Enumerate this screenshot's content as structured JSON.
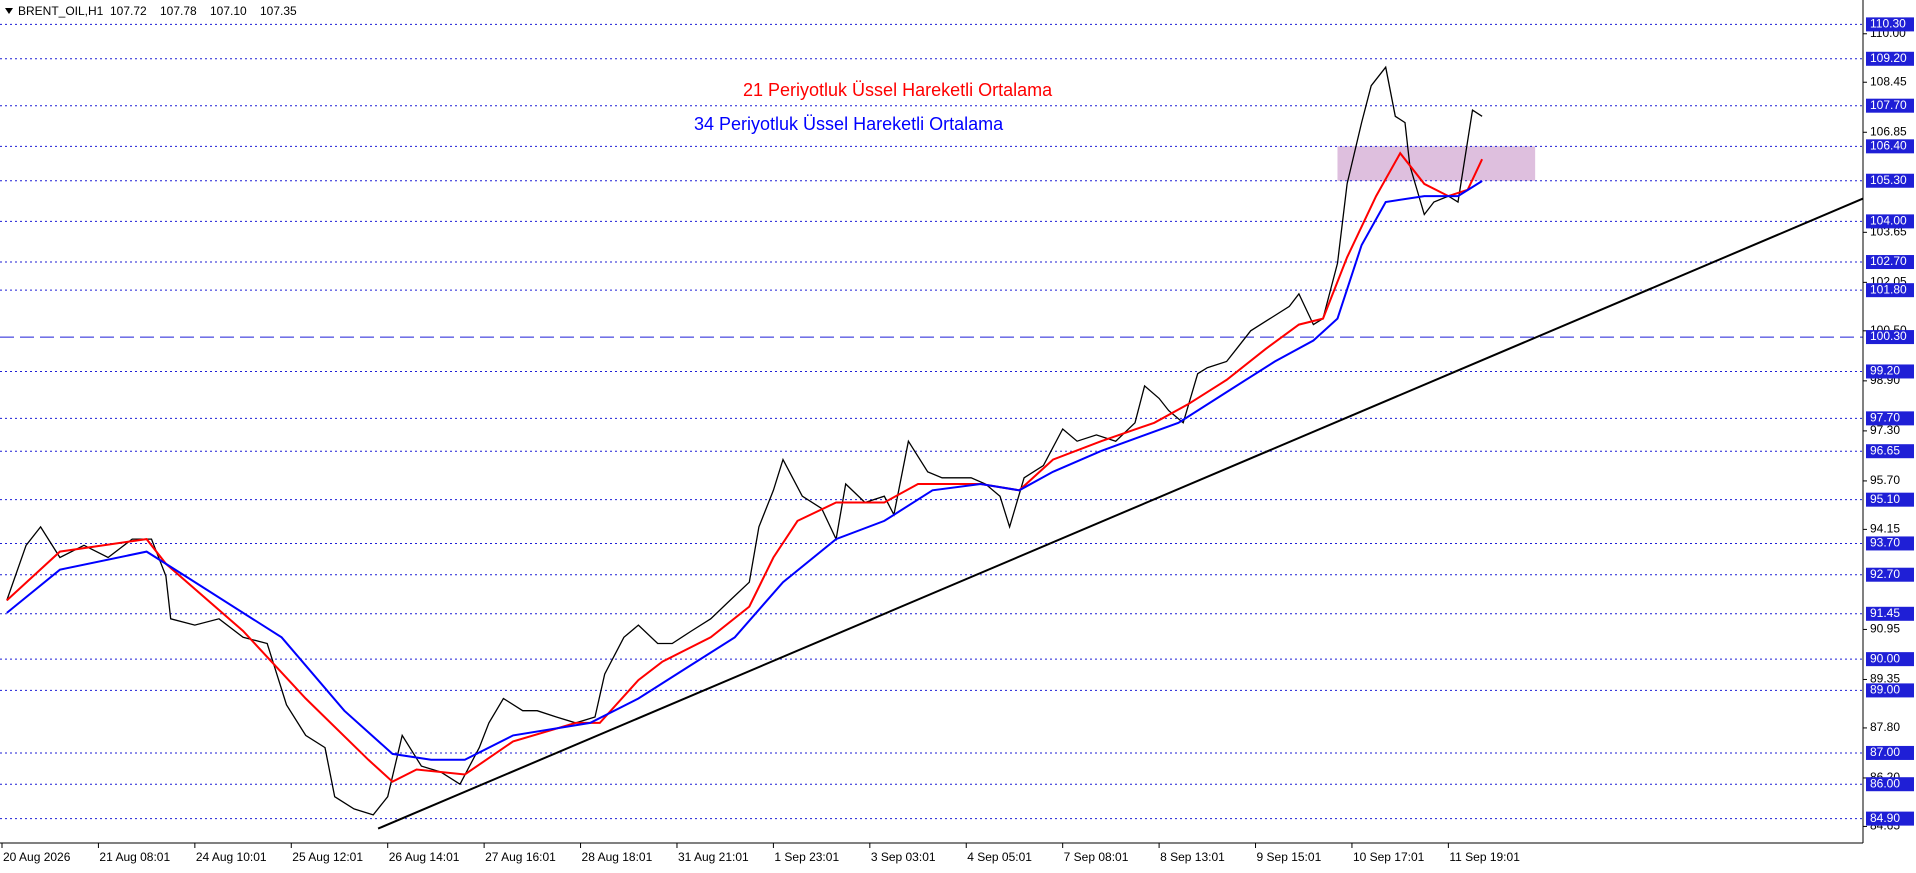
{
  "chart_data": {
    "type": "line",
    "symbol": "BRENT_OIL,H1",
    "ohlc": [
      {
        "value": 107.72,
        "label": "107.72"
      },
      {
        "value": 107.78,
        "label": "107.78"
      },
      {
        "value": 107.1,
        "label": "107.10"
      },
      {
        "value": 107.35,
        "label": "107.35"
      }
    ],
    "xlim": [
      0,
      386
    ],
    "ylim": [
      84.12,
      111.08
    ],
    "xticks": [
      {
        "value": 0,
        "label": "20 Aug 2026"
      },
      {
        "value": 20,
        "label": "21 Aug 08:01"
      },
      {
        "value": 40,
        "label": "24 Aug 10:01"
      },
      {
        "value": 60,
        "label": "25 Aug 12:01"
      },
      {
        "value": 80,
        "label": "26 Aug 14:01"
      },
      {
        "value": 100,
        "label": "27 Aug 16:01"
      },
      {
        "value": 120,
        "label": "28 Aug 18:01"
      },
      {
        "value": 140,
        "label": "31 Aug 21:01"
      },
      {
        "value": 160,
        "label": "1 Sep 23:01"
      },
      {
        "value": 180,
        "label": "3 Sep 03:01"
      },
      {
        "value": 200,
        "label": "4 Sep 05:01"
      },
      {
        "value": 220,
        "label": "7 Sep 08:01"
      },
      {
        "value": 240,
        "label": "8 Sep 13:01"
      },
      {
        "value": 260,
        "label": "9 Sep 15:01"
      },
      {
        "value": 280,
        "label": "10 Sep 17:01"
      },
      {
        "value": 300,
        "label": "11 Sep 19:01"
      }
    ],
    "yticks": [
      {
        "value": 110.0,
        "label": "110.00"
      },
      {
        "value": 108.45,
        "label": "108.45"
      },
      {
        "value": 106.85,
        "label": "106.85"
      },
      {
        "value": 103.65,
        "label": "103.65"
      },
      {
        "value": 102.05,
        "label": "102.05"
      },
      {
        "value": 100.5,
        "label": "100.50"
      },
      {
        "value": 98.9,
        "label": "98.90"
      },
      {
        "value": 97.3,
        "label": "97.30"
      },
      {
        "value": 95.7,
        "label": "95.70"
      },
      {
        "value": 94.15,
        "label": "94.15"
      },
      {
        "value": 90.95,
        "label": "90.95"
      },
      {
        "value": 89.35,
        "label": "89.35"
      },
      {
        "value": 87.8,
        "label": "87.80"
      },
      {
        "value": 86.2,
        "label": "86.20"
      },
      {
        "value": 84.65,
        "label": "84.65"
      }
    ],
    "levels": [
      {
        "value": 110.3,
        "label": "110.30"
      },
      {
        "value": 109.2,
        "label": "109.20"
      },
      {
        "value": 107.7,
        "label": "107.70"
      },
      {
        "value": 106.4,
        "label": "106.40"
      },
      {
        "value": 105.3,
        "label": "105.30"
      },
      {
        "value": 104.0,
        "label": "104.00"
      },
      {
        "value": 102.7,
        "label": "102.70"
      },
      {
        "value": 101.8,
        "label": "101.80"
      },
      {
        "value": 100.3,
        "label": "100.30",
        "dashed": true
      },
      {
        "value": 99.2,
        "label": "99.20"
      },
      {
        "value": 97.7,
        "label": "97.70"
      },
      {
        "value": 96.65,
        "label": "96.65"
      },
      {
        "value": 95.1,
        "label": "95.10"
      },
      {
        "value": 93.7,
        "label": "93.70"
      },
      {
        "value": 92.7,
        "label": "92.70"
      },
      {
        "value": 91.45,
        "label": "91.45"
      },
      {
        "value": 90.0,
        "label": "90.00"
      },
      {
        "value": 89.0,
        "label": "89.00"
      },
      {
        "value": 87.0,
        "label": "87.00"
      },
      {
        "value": 86.0,
        "label": "86.00"
      },
      {
        "value": 84.9,
        "label": "84.90"
      }
    ],
    "level_color": "#1f1fd6",
    "price": {
      "color": "#000000",
      "x": [
        1,
        5,
        8,
        12,
        17,
        22,
        27,
        31,
        34,
        35,
        40,
        45,
        50,
        55,
        59,
        63,
        67,
        69,
        73,
        77,
        80,
        83,
        87,
        91,
        95,
        99,
        101,
        104,
        108,
        111,
        115,
        119,
        123,
        125,
        129,
        132,
        136,
        139,
        143,
        147,
        151,
        155,
        157,
        160,
        162,
        166,
        170,
        173,
        175,
        179,
        183,
        185,
        188,
        192,
        195,
        201,
        204,
        207,
        209,
        212,
        216,
        220,
        223,
        227,
        231,
        235,
        237,
        240,
        242,
        245,
        248,
        250,
        254,
        256,
        259,
        263,
        267,
        269,
        272,
        274,
        277,
        279,
        282,
        284,
        287,
        289,
        291,
        292,
        295,
        297,
        300,
        302,
        305,
        307
      ],
      "values": [
        91.88,
        93.64,
        94.23,
        93.25,
        93.64,
        93.25,
        93.84,
        93.84,
        92.66,
        91.29,
        91.09,
        91.29,
        90.7,
        90.5,
        88.54,
        87.56,
        87.17,
        85.6,
        85.21,
        85.02,
        85.6,
        87.56,
        86.58,
        86.39,
        86.0,
        87.17,
        87.96,
        88.74,
        88.35,
        88.35,
        88.15,
        87.96,
        88.15,
        89.52,
        90.7,
        91.09,
        90.5,
        90.5,
        90.9,
        91.29,
        91.88,
        92.46,
        94.23,
        95.4,
        96.38,
        95.21,
        94.82,
        93.84,
        95.6,
        95.01,
        95.21,
        94.62,
        96.97,
        95.99,
        95.8,
        95.8,
        95.6,
        95.21,
        94.23,
        95.8,
        96.19,
        97.36,
        96.97,
        97.17,
        96.97,
        97.56,
        98.74,
        98.34,
        97.95,
        97.56,
        99.13,
        99.32,
        99.52,
        99.91,
        100.5,
        100.89,
        101.28,
        101.68,
        100.7,
        100.89,
        102.66,
        105.2,
        107.16,
        108.34,
        108.93,
        107.36,
        107.16,
        105.79,
        104.22,
        104.62,
        104.81,
        104.62,
        107.56,
        107.36
      ]
    },
    "series": [
      {
        "name": "21 Periyotluk Üssel Hareketli Ortalama",
        "color": "#ff0000",
        "x": [
          1,
          12,
          30,
          34,
          50,
          63,
          76,
          81,
          86,
          96,
          106,
          119,
          124,
          132,
          137,
          147,
          155,
          160,
          165,
          173,
          183,
          190,
          203,
          211,
          218,
          228,
          239,
          246,
          254,
          262,
          269,
          274,
          279,
          285,
          290,
          295,
          300,
          304,
          307
        ],
        "values": [
          91.88,
          93.44,
          93.84,
          93.05,
          90.9,
          88.74,
          86.78,
          86.08,
          86.47,
          86.31,
          87.37,
          87.96,
          87.96,
          89.33,
          89.92,
          90.7,
          91.68,
          93.25,
          94.42,
          95.01,
          95.01,
          95.6,
          95.6,
          95.4,
          96.38,
          96.97,
          97.56,
          98.15,
          98.93,
          99.91,
          100.7,
          100.89,
          102.85,
          104.81,
          106.18,
          105.2,
          104.81,
          105.01,
          105.99
        ]
      },
      {
        "name": "34 Periyotluk Üssel Hareketli Ortalama",
        "color": "#0000ff",
        "x": [
          1,
          12,
          30,
          38,
          58,
          71,
          81,
          89,
          96,
          106,
          122,
          132,
          142,
          152,
          162,
          173,
          183,
          193,
          203,
          211,
          218,
          228,
          244,
          254,
          264,
          272,
          277,
          282,
          287,
          295,
          302,
          307
        ],
        "values": [
          91.48,
          92.86,
          93.44,
          92.66,
          90.7,
          88.35,
          86.97,
          86.78,
          86.78,
          87.56,
          87.96,
          88.74,
          89.72,
          90.7,
          92.46,
          93.84,
          94.42,
          95.4,
          95.6,
          95.4,
          95.99,
          96.66,
          97.56,
          98.54,
          99.52,
          100.19,
          100.89,
          103.24,
          104.62,
          104.81,
          104.81,
          105.29
        ]
      }
    ],
    "trendline": {
      "x": [
        78,
        386
      ],
      "values": [
        84.58,
        104.73
      ],
      "color": "#000000"
    },
    "zone": {
      "x": [
        277,
        318
      ],
      "values": [
        105.3,
        106.4
      ],
      "color": "#d8b4d8"
    }
  }
}
